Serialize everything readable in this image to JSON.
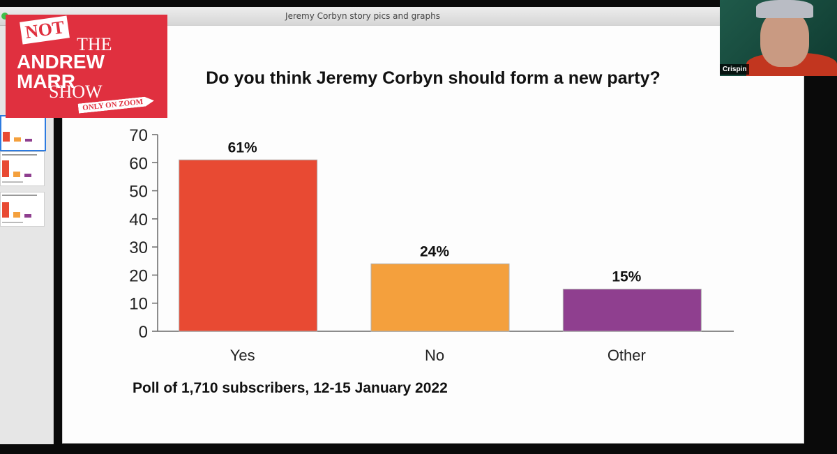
{
  "window": {
    "title": "Jeremy Corbyn story pics and graphs"
  },
  "logo": {
    "not": "NOT",
    "line1": "THE",
    "line2": "ANDREW MARR",
    "line3": "SHOW",
    "tagline": "ONLY ON ZOOM"
  },
  "webcam": {
    "name": "Crispin"
  },
  "colors": {
    "yes": "#e84a33",
    "no": "#f4a03d",
    "other": "#8f3f8f"
  },
  "footnote": "Poll of 1,710 subscribers, 12-15 January 2022",
  "chart_data": {
    "type": "bar",
    "title": "Do you think Jeremy Corbyn should form a new party?",
    "categories": [
      "Yes",
      "No",
      "Other"
    ],
    "values": [
      61,
      24,
      15
    ],
    "data_labels": [
      "61%",
      "24%",
      "15%"
    ],
    "ylim": [
      0,
      70
    ],
    "yticks": [
      "0",
      "10",
      "20",
      "30",
      "40",
      "50",
      "60",
      "70"
    ],
    "xlabel": "",
    "ylabel": "",
    "grid": false,
    "legend": "none"
  }
}
